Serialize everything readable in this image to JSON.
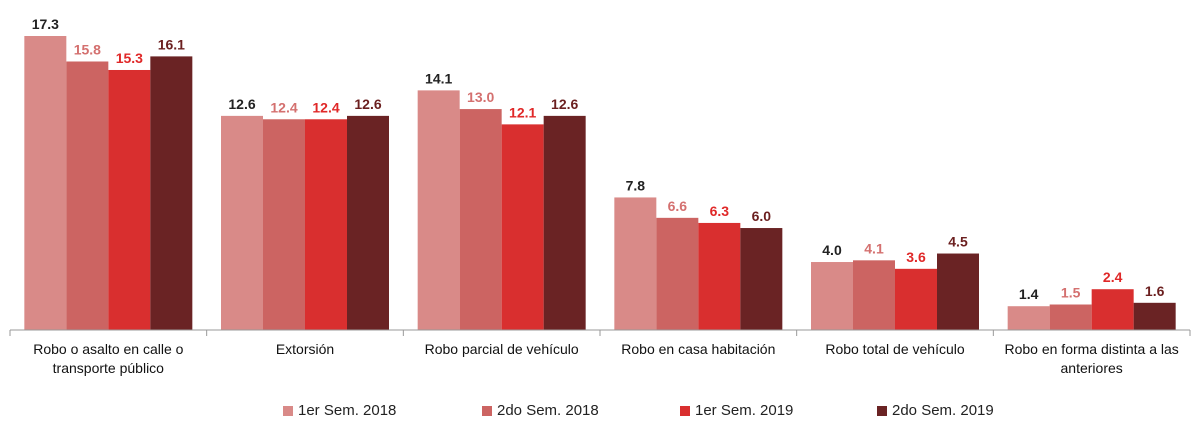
{
  "chart_data": {
    "type": "bar",
    "categories": [
      "Robo o asalto en calle o transporte público",
      "Extorsión",
      "Robo parcial de vehículo",
      "Robo en casa habitación",
      "Robo total de vehículo",
      "Robo en forma distinta a las anteriores"
    ],
    "series": [
      {
        "name": "1er Sem. 2018",
        "color": "#d98a88",
        "label_color": "#222222",
        "values": [
          17.3,
          12.6,
          14.1,
          7.8,
          4.0,
          1.4
        ],
        "value_labels": [
          "17.3",
          "12.6",
          "14.1",
          "7.8",
          "4.0",
          "1.4"
        ]
      },
      {
        "name": "2do Sem. 2018",
        "color": "#cc6462",
        "label_color": "#d4706f",
        "values": [
          15.8,
          12.4,
          13.0,
          6.6,
          4.1,
          1.5
        ],
        "value_labels": [
          "15.8",
          "12.4",
          "13.0",
          "6.6",
          "4.1",
          "1.5"
        ]
      },
      {
        "name": "1er Sem. 2019",
        "color": "#d92f2f",
        "label_color": "#e02828",
        "values": [
          15.3,
          12.4,
          12.1,
          6.3,
          3.6,
          2.4
        ],
        "value_labels": [
          "15.3",
          "12.4",
          "12.1",
          "6.3",
          "3.6",
          "2.4"
        ]
      },
      {
        "name": "2do Sem. 2019",
        "color": "#6a2324",
        "label_color": "#6b1f1f",
        "values": [
          16.1,
          12.6,
          12.6,
          6.0,
          4.5,
          1.6
        ],
        "value_labels": [
          "16.1",
          "12.6",
          "12.6",
          "6.0",
          "4.5",
          "1.6"
        ]
      }
    ],
    "legend": "bottom"
  }
}
